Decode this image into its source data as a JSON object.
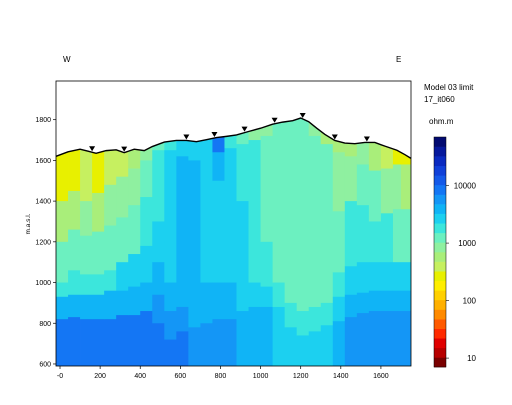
{
  "chart_data": {
    "type": "heatmap",
    "title_lines": [
      "Model 03 limit",
      "17_it060"
    ],
    "direction_left": "W",
    "direction_right": "E",
    "ylabel": "m.a.s.l.",
    "xlabel": "",
    "xlim": [
      -20,
      1750
    ],
    "ylim": [
      590,
      1990
    ],
    "x_ticks": [
      0,
      200,
      400,
      600,
      800,
      1000,
      1200,
      1400,
      1600
    ],
    "x_tick_labels": [
      "-0",
      "200",
      "400",
      "600",
      "800",
      "1000",
      "1200",
      "1400",
      "1600"
    ],
    "y_ticks": [
      600,
      800,
      1000,
      1200,
      1400,
      1600,
      1800
    ],
    "grid": false,
    "colorbar": {
      "unit": "ohm.m",
      "scale": "log",
      "range": [
        7,
        70000
      ],
      "ticks": [
        10,
        100,
        1000,
        10000
      ],
      "colors_low_to_high": [
        "#7a0000",
        "#b80000",
        "#e00000",
        "#ff2a00",
        "#ff5a00",
        "#ff8a00",
        "#ffb000",
        "#ffd000",
        "#ffee00",
        "#e8f000",
        "#c6f060",
        "#a9ee7a",
        "#8ff0a0",
        "#6cf0c0",
        "#3ce6dc",
        "#1cd0f0",
        "#10b4f6",
        "#1496f6",
        "#1476f4",
        "#1459e8",
        "#1040d8",
        "#0a2ac0",
        "#06189c",
        "#020a70"
      ]
    },
    "topography": [
      [
        -20,
        1620
      ],
      [
        40,
        1642
      ],
      [
        100,
        1655
      ],
      [
        140,
        1645
      ],
      [
        180,
        1635
      ],
      [
        230,
        1648
      ],
      [
        280,
        1652
      ],
      [
        320,
        1638
      ],
      [
        370,
        1655
      ],
      [
        420,
        1648
      ],
      [
        460,
        1668
      ],
      [
        520,
        1690
      ],
      [
        580,
        1698
      ],
      [
        630,
        1698
      ],
      [
        680,
        1692
      ],
      [
        730,
        1702
      ],
      [
        780,
        1712
      ],
      [
        830,
        1718
      ],
      [
        880,
        1725
      ],
      [
        940,
        1742
      ],
      [
        1000,
        1758
      ],
      [
        1060,
        1778
      ],
      [
        1110,
        1788
      ],
      [
        1160,
        1795
      ],
      [
        1200,
        1808
      ],
      [
        1240,
        1790
      ],
      [
        1280,
        1758
      ],
      [
        1320,
        1728
      ],
      [
        1370,
        1698
      ],
      [
        1420,
        1685
      ],
      [
        1470,
        1682
      ],
      [
        1520,
        1688
      ],
      [
        1570,
        1688
      ],
      [
        1620,
        1670
      ],
      [
        1680,
        1650
      ],
      [
        1720,
        1628
      ],
      [
        1750,
        1610
      ]
    ],
    "electrodes_x": [
      160,
      320,
      630,
      770,
      920,
      1070,
      1210,
      1370,
      1530
    ],
    "columns": [
      {
        "x0": -20,
        "x1": 40,
        "bands": [
          [
            1400,
            2000,
            300
          ],
          [
            1200,
            1400,
            600
          ],
          [
            1000,
            1200,
            1200
          ],
          [
            930,
            1000,
            2000
          ],
          [
            820,
            930,
            4000
          ],
          [
            590,
            820,
            7000
          ]
        ]
      },
      {
        "x0": 40,
        "x1": 100,
        "bands": [
          [
            1450,
            2000,
            300
          ],
          [
            1260,
            1450,
            500
          ],
          [
            1060,
            1260,
            1100
          ],
          [
            940,
            1060,
            2000
          ],
          [
            830,
            940,
            4000
          ],
          [
            590,
            830,
            7000
          ]
        ]
      },
      {
        "x0": 100,
        "x1": 160,
        "bands": [
          [
            1400,
            2000,
            350
          ],
          [
            1230,
            1400,
            700
          ],
          [
            1040,
            1230,
            1300
          ],
          [
            940,
            1040,
            2200
          ],
          [
            820,
            940,
            4000
          ],
          [
            590,
            820,
            7000
          ]
        ]
      },
      {
        "x0": 160,
        "x1": 220,
        "bands": [
          [
            1440,
            2000,
            280
          ],
          [
            1250,
            1440,
            600
          ],
          [
            1040,
            1250,
            1200
          ],
          [
            940,
            1040,
            2200
          ],
          [
            820,
            940,
            4200
          ],
          [
            590,
            820,
            7000
          ]
        ]
      },
      {
        "x0": 220,
        "x1": 280,
        "bands": [
          [
            1480,
            2000,
            350
          ],
          [
            1280,
            1480,
            700
          ],
          [
            1060,
            1280,
            1300
          ],
          [
            960,
            1060,
            2200
          ],
          [
            820,
            960,
            4200
          ],
          [
            590,
            820,
            7200
          ]
        ]
      },
      {
        "x0": 280,
        "x1": 340,
        "bands": [
          [
            1520,
            2000,
            450
          ],
          [
            1320,
            1520,
            800
          ],
          [
            1100,
            1320,
            1400
          ],
          [
            960,
            1100,
            2300
          ],
          [
            840,
            960,
            4200
          ],
          [
            590,
            840,
            7200
          ]
        ]
      },
      {
        "x0": 340,
        "x1": 400,
        "bands": [
          [
            1560,
            2000,
            600
          ],
          [
            1380,
            1560,
            1000
          ],
          [
            1140,
            1380,
            1500
          ],
          [
            980,
            1140,
            2400
          ],
          [
            840,
            980,
            4300
          ],
          [
            590,
            840,
            7200
          ]
        ]
      },
      {
        "x0": 400,
        "x1": 460,
        "bands": [
          [
            1600,
            2000,
            800
          ],
          [
            1420,
            1600,
            1300
          ],
          [
            1180,
            1420,
            1800
          ],
          [
            1000,
            1180,
            2600
          ],
          [
            860,
            1000,
            4300
          ],
          [
            590,
            860,
            7200
          ]
        ]
      },
      {
        "x0": 460,
        "x1": 520,
        "bands": [
          [
            1650,
            2000,
            1500
          ],
          [
            1300,
            1650,
            2200
          ],
          [
            1100,
            1300,
            2600
          ],
          [
            940,
            1100,
            3400
          ],
          [
            800,
            940,
            5000
          ],
          [
            590,
            800,
            7200
          ]
        ]
      },
      {
        "x0": 520,
        "x1": 580,
        "bands": [
          [
            1650,
            2000,
            2200
          ],
          [
            1200,
            1650,
            2800
          ],
          [
            1000,
            1200,
            3200
          ],
          [
            860,
            1000,
            4400
          ],
          [
            720,
            860,
            6000
          ],
          [
            590,
            720,
            7500
          ]
        ]
      },
      {
        "x0": 580,
        "x1": 640,
        "bands": [
          [
            1620,
            2000,
            2600
          ],
          [
            1000,
            1620,
            3300
          ],
          [
            880,
            1000,
            4200
          ],
          [
            760,
            880,
            5200
          ],
          [
            590,
            760,
            7000
          ]
        ]
      },
      {
        "x0": 640,
        "x1": 700,
        "bands": [
          [
            1600,
            2000,
            2800
          ],
          [
            900,
            1600,
            3400
          ],
          [
            780,
            900,
            4500
          ],
          [
            590,
            780,
            6000
          ]
        ]
      },
      {
        "x0": 700,
        "x1": 760,
        "bands": [
          [
            1640,
            2000,
            3000
          ],
          [
            1500,
            1640,
            2500
          ],
          [
            1000,
            1500,
            3200
          ],
          [
            800,
            1000,
            4200
          ],
          [
            590,
            800,
            5500
          ]
        ]
      },
      {
        "x0": 760,
        "x1": 820,
        "bands": [
          [
            1640,
            2000,
            9000
          ],
          [
            1500,
            1640,
            4500
          ],
          [
            1000,
            1500,
            3000
          ],
          [
            820,
            1000,
            3800
          ],
          [
            590,
            820,
            5200
          ]
        ]
      },
      {
        "x0": 820,
        "x1": 880,
        "bands": [
          [
            1660,
            2000,
            2200
          ],
          [
            1450,
            1660,
            2600
          ],
          [
            1000,
            1450,
            2800
          ],
          [
            820,
            1000,
            3600
          ],
          [
            590,
            820,
            5000
          ]
        ]
      },
      {
        "x0": 880,
        "x1": 940,
        "bands": [
          [
            1680,
            2000,
            1400
          ],
          [
            1400,
            1680,
            2200
          ],
          [
            1050,
            1400,
            2500
          ],
          [
            860,
            1050,
            3200
          ],
          [
            590,
            860,
            4500
          ]
        ]
      },
      {
        "x0": 940,
        "x1": 1000,
        "bands": [
          [
            1700,
            2000,
            900
          ],
          [
            1300,
            1700,
            1600
          ],
          [
            1000,
            1300,
            2100
          ],
          [
            880,
            1000,
            2700
          ],
          [
            590,
            880,
            4000
          ]
        ]
      },
      {
        "x0": 1000,
        "x1": 1060,
        "bands": [
          [
            1720,
            2000,
            1000
          ],
          [
            1200,
            1720,
            1400
          ],
          [
            980,
            1200,
            1800
          ],
          [
            880,
            980,
            2400
          ],
          [
            590,
            880,
            3600
          ]
        ]
      },
      {
        "x0": 1060,
        "x1": 1120,
        "bands": [
          [
            1740,
            2000,
            1200
          ],
          [
            1000,
            1740,
            1300
          ],
          [
            880,
            1000,
            1800
          ],
          [
            590,
            880,
            3200
          ]
        ]
      },
      {
        "x0": 1120,
        "x1": 1180,
        "bands": [
          [
            1760,
            2000,
            1300
          ],
          [
            900,
            1760,
            1250
          ],
          [
            780,
            900,
            2000
          ],
          [
            590,
            780,
            3200
          ]
        ]
      },
      {
        "x0": 1180,
        "x1": 1240,
        "bands": [
          [
            1760,
            2000,
            1100
          ],
          [
            860,
            1760,
            1200
          ],
          [
            740,
            860,
            1800
          ],
          [
            590,
            740,
            2800
          ]
        ]
      },
      {
        "x0": 1240,
        "x1": 1300,
        "bands": [
          [
            1720,
            2000,
            700
          ],
          [
            880,
            1720,
            1150
          ],
          [
            760,
            880,
            1800
          ],
          [
            590,
            760,
            2900
          ]
        ]
      },
      {
        "x0": 1300,
        "x1": 1360,
        "bands": [
          [
            1680,
            2000,
            600
          ],
          [
            1200,
            1680,
            1100
          ],
          [
            900,
            1200,
            1400
          ],
          [
            790,
            900,
            2000
          ],
          [
            590,
            790,
            3000
          ]
        ]
      },
      {
        "x0": 1360,
        "x1": 1420,
        "bands": [
          [
            1640,
            2000,
            550
          ],
          [
            1350,
            1640,
            900
          ],
          [
            1050,
            1350,
            1500
          ],
          [
            930,
            1050,
            2100
          ],
          [
            810,
            930,
            3200
          ],
          [
            590,
            810,
            4200
          ]
        ]
      },
      {
        "x0": 1420,
        "x1": 1480,
        "bands": [
          [
            1620,
            2000,
            600
          ],
          [
            1400,
            1620,
            1000
          ],
          [
            1080,
            1400,
            1600
          ],
          [
            940,
            1080,
            2400
          ],
          [
            830,
            940,
            3500
          ],
          [
            590,
            830,
            4800
          ]
        ]
      },
      {
        "x0": 1480,
        "x1": 1540,
        "bands": [
          [
            1580,
            2000,
            700
          ],
          [
            1380,
            1580,
            1100
          ],
          [
            1100,
            1380,
            1700
          ],
          [
            950,
            1100,
            2600
          ],
          [
            850,
            950,
            3800
          ],
          [
            590,
            850,
            5200
          ]
        ]
      },
      {
        "x0": 1540,
        "x1": 1600,
        "bands": [
          [
            1550,
            2000,
            600
          ],
          [
            1300,
            1550,
            1100
          ],
          [
            1100,
            1300,
            1800
          ],
          [
            960,
            1100,
            2800
          ],
          [
            860,
            960,
            4000
          ],
          [
            590,
            860,
            5500
          ]
        ]
      },
      {
        "x0": 1600,
        "x1": 1660,
        "bands": [
          [
            1560,
            2000,
            400
          ],
          [
            1340,
            1560,
            900
          ],
          [
            1100,
            1340,
            1600
          ],
          [
            960,
            1100,
            2800
          ],
          [
            860,
            960,
            4000
          ],
          [
            590,
            860,
            5600
          ]
        ]
      },
      {
        "x0": 1660,
        "x1": 1700,
        "bands": [
          [
            1580,
            2000,
            280
          ],
          [
            1360,
            1580,
            700
          ],
          [
            1100,
            1360,
            1500
          ],
          [
            960,
            1100,
            2800
          ],
          [
            860,
            960,
            4000
          ],
          [
            590,
            860,
            5600
          ]
        ]
      },
      {
        "x0": 1700,
        "x1": 1750,
        "bands": [
          [
            1580,
            2000,
            250
          ],
          [
            1360,
            1580,
            650
          ],
          [
            1100,
            1360,
            1400
          ],
          [
            960,
            1100,
            2800
          ],
          [
            860,
            960,
            4000
          ],
          [
            590,
            860,
            5600
          ]
        ]
      }
    ]
  }
}
